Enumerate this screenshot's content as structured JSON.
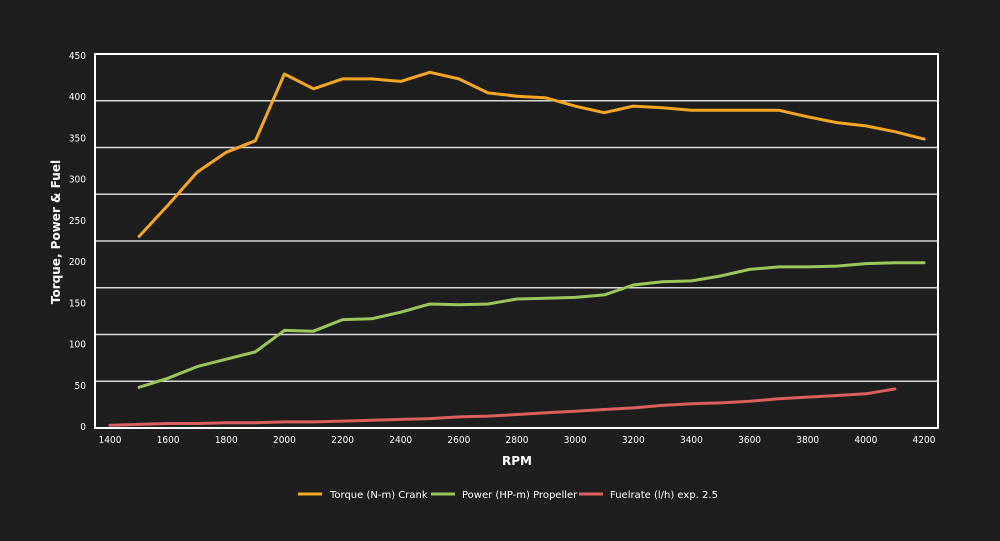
{
  "chart_data": {
    "type": "line",
    "title": "",
    "xlabel": "RPM",
    "ylabel": "Torque, Power & Fuel",
    "xlim": [
      1400,
      4200
    ],
    "ylim": [
      0,
      450
    ],
    "x_ticks": [
      "1400",
      "1600",
      "1800",
      "2000",
      "2200",
      "2400",
      "2600",
      "2800",
      "3000",
      "3200",
      "3400",
      "3600",
      "3800",
      "4000",
      "4200"
    ],
    "y_ticks": [
      "0",
      "50",
      "100",
      "150",
      "200",
      "250",
      "300",
      "350",
      "400",
      "450"
    ],
    "grid": true,
    "legend_position": "bottom",
    "series": [
      {
        "name": "Torque (N-m) Crank",
        "color": "#f5a623",
        "x": [
          1500,
          1600,
          1700,
          1800,
          1900,
          2000,
          2100,
          2200,
          2300,
          2400,
          2500,
          2600,
          2700,
          2800,
          2900,
          3000,
          3100,
          3200,
          3300,
          3400,
          3500,
          3600,
          3700,
          3800,
          3900,
          4000,
          4100,
          4200
        ],
        "values": [
          230,
          268,
          308,
          332,
          346,
          427,
          409,
          421,
          421,
          418,
          429,
          421,
          404,
          400,
          398,
          388,
          380,
          388,
          386,
          383,
          383,
          383,
          383,
          375,
          368,
          364,
          357,
          348
        ]
      },
      {
        "name": "Power (HP-m) Propeller",
        "color": "#9bc75a",
        "x": [
          1500,
          1600,
          1700,
          1800,
          1900,
          2000,
          2100,
          2200,
          2300,
          2400,
          2500,
          2600,
          2700,
          2800,
          2900,
          3000,
          3100,
          3200,
          3300,
          3400,
          3500,
          3600,
          3700,
          3800,
          3900,
          4000,
          4100,
          4200
        ],
        "values": [
          47,
          58,
          72,
          81,
          90,
          116,
          115,
          129,
          130,
          138,
          148,
          147,
          148,
          154,
          155,
          156,
          159,
          171,
          175,
          176,
          182,
          190,
          193,
          193,
          194,
          197,
          198,
          198
        ]
      },
      {
        "name": "Fuelrate (l/h) exp. 2.5",
        "color": "#d9605c",
        "x": [
          1400,
          1500,
          1600,
          1700,
          1800,
          1900,
          2000,
          2100,
          2200,
          2300,
          2400,
          2500,
          2600,
          2700,
          2800,
          2900,
          3000,
          3100,
          3200,
          3300,
          3400,
          3500,
          3600,
          3700,
          3800,
          3900,
          4000,
          4100
        ],
        "values": [
          1,
          2,
          3,
          3,
          4,
          4,
          5,
          5,
          6,
          7,
          8,
          9,
          11,
          12,
          14,
          16,
          18,
          20,
          22,
          25,
          27,
          28,
          30,
          33,
          35,
          37,
          39,
          45
        ]
      }
    ]
  }
}
